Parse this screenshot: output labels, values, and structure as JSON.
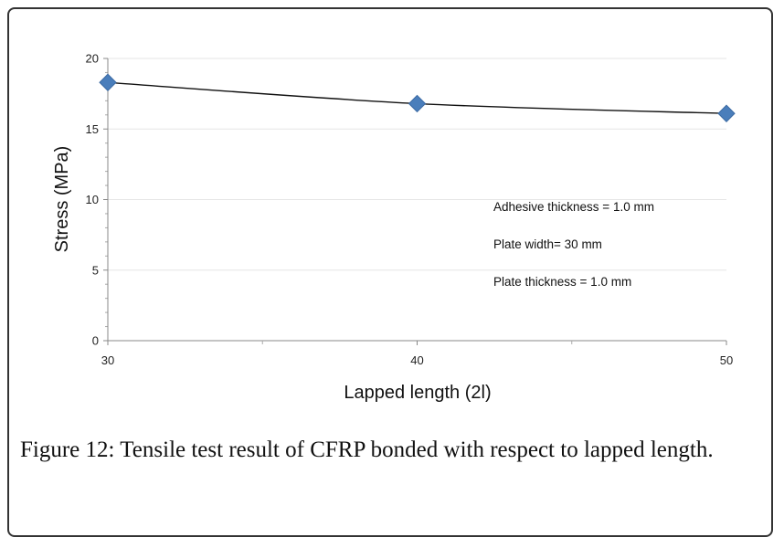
{
  "chart_data": {
    "type": "line",
    "x": [
      30,
      40,
      50
    ],
    "series": [
      {
        "values": [
          18.3,
          16.8,
          16.1
        ],
        "color": "#4a7ebb",
        "marker": "diamond",
        "line_color": "#111111"
      }
    ],
    "xlabel": "Lapped length (2l)",
    "ylabel": "Stress (MPa)",
    "xlim": [
      30,
      50
    ],
    "ylim": [
      0,
      20
    ],
    "x_ticks": [
      "30",
      "40",
      "50"
    ],
    "y_ticks": [
      "0",
      "5",
      "10",
      "15",
      "20"
    ],
    "grid": "horizontal",
    "annotations": [
      "Adhesive thickness = 1.0 mm",
      "Plate width= 30 mm",
      "Plate thickness = 1.0 mm"
    ]
  },
  "caption": {
    "label": "Figure 12:",
    "text": " Tensile test result of CFRP bonded with respect to lapped length."
  }
}
